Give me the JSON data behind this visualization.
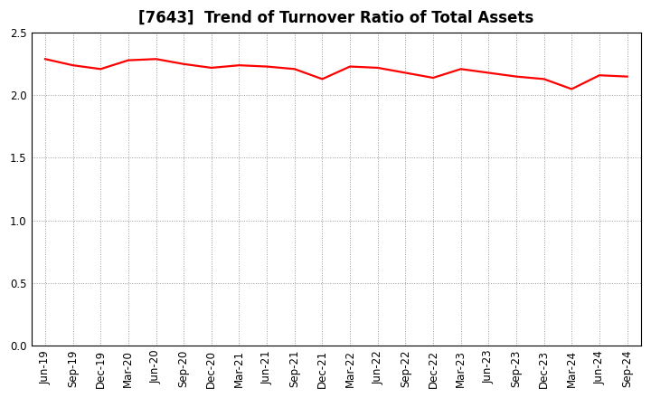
{
  "title": "[7643]  Trend of Turnover Ratio of Total Assets",
  "x_labels": [
    "Jun-19",
    "Sep-19",
    "Dec-19",
    "Mar-20",
    "Jun-20",
    "Sep-20",
    "Dec-20",
    "Mar-21",
    "Jun-21",
    "Sep-21",
    "Dec-21",
    "Mar-22",
    "Jun-22",
    "Sep-22",
    "Dec-22",
    "Mar-23",
    "Jun-23",
    "Sep-23",
    "Dec-23",
    "Mar-24",
    "Jun-24",
    "Sep-24"
  ],
  "values": [
    2.29,
    2.24,
    2.21,
    2.28,
    2.29,
    2.25,
    2.22,
    2.24,
    2.23,
    2.21,
    2.13,
    2.23,
    2.22,
    2.18,
    2.14,
    2.21,
    2.18,
    2.15,
    2.13,
    2.05,
    2.16,
    2.15
  ],
  "ylim": [
    0.0,
    2.5
  ],
  "yticks": [
    0.0,
    0.5,
    1.0,
    1.5,
    2.0,
    2.5
  ],
  "line_color": "#ff0000",
  "line_width": 1.6,
  "grid_color": "#999999",
  "background_color": "#ffffff",
  "title_fontsize": 12,
  "tick_fontsize": 8.5
}
